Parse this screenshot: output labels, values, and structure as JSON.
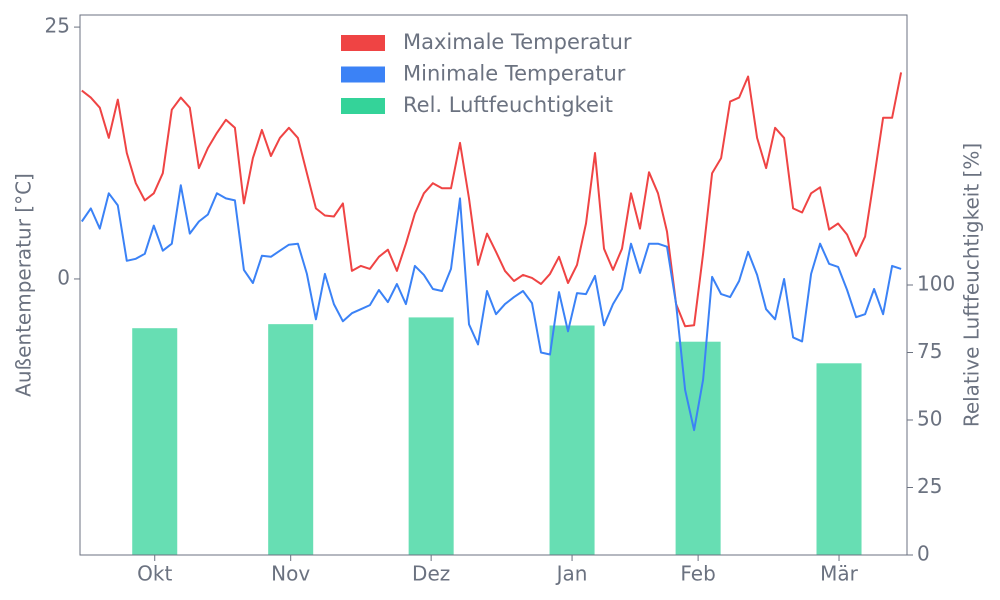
{
  "chart_data": {
    "type": "line",
    "xlim": [
      -0.4,
      183.3
    ],
    "xticks": [
      {
        "value": 16.2,
        "label": "Okt"
      },
      {
        "value": 46.4,
        "label": "Nov"
      },
      {
        "value": 77.6,
        "label": "Dez"
      },
      {
        "value": 108.9,
        "label": "Jan"
      },
      {
        "value": 136.9,
        "label": "Feb"
      },
      {
        "value": 168.2,
        "label": "Mär"
      }
    ],
    "ylabel": "Außentemperatur [°C]",
    "ylim": [
      -27.4,
      26.2
    ],
    "yticks": [
      0,
      25
    ],
    "y2label": "Relative Luftfeuchtigkeit [%]",
    "y2lim": [
      0,
      200
    ],
    "y2ticks": [
      0,
      25,
      50,
      75,
      100
    ],
    "legend": "top",
    "series": [
      {
        "name": "Maximale Temperatur",
        "color": "#ef4444",
        "type": "line",
        "x": [
          0,
          2,
          4,
          6,
          8,
          10,
          12,
          14,
          16,
          18,
          20,
          22,
          24,
          26,
          28,
          30,
          32,
          34,
          36,
          38,
          40,
          42,
          44,
          46,
          48,
          50,
          52,
          54,
          56,
          58,
          60,
          62,
          64,
          66,
          68,
          70,
          72,
          74,
          76,
          78,
          80,
          82,
          84,
          86,
          88,
          90,
          92,
          94,
          96,
          98,
          100,
          102,
          104,
          106,
          108,
          110,
          112,
          114,
          116,
          118,
          120,
          122,
          124,
          126,
          128,
          130,
          132,
          134,
          136,
          138,
          140,
          142,
          144,
          146,
          148,
          150,
          152,
          154,
          156,
          158,
          160,
          162,
          164,
          166,
          168,
          170,
          172,
          174,
          176,
          178,
          180,
          182
        ],
        "values": [
          18.7,
          18.0,
          17.0,
          14.0,
          17.8,
          12.5,
          9.5,
          7.8,
          8.5,
          10.5,
          16.8,
          18.0,
          17.0,
          11.0,
          13.0,
          14.5,
          15.8,
          15.0,
          7.5,
          12.0,
          14.8,
          12.2,
          14.0,
          15.0,
          14.0,
          10.5,
          7.0,
          6.3,
          6.2,
          7.5,
          0.8,
          1.3,
          1.0,
          2.2,
          2.9,
          0.8,
          3.5,
          6.5,
          8.5,
          9.5,
          9.0,
          9.0,
          13.5,
          8.0,
          1.4,
          4.5,
          2.7,
          0.8,
          -0.2,
          0.4,
          0.1,
          -0.5,
          0.5,
          2.2,
          -0.4,
          1.4,
          5.5,
          12.5,
          3.0,
          0.9,
          3.0,
          8.5,
          5.0,
          10.6,
          8.5,
          4.7,
          -2.5,
          -4.7,
          -4.6,
          2.5,
          10.5,
          12.0,
          17.6,
          18.0,
          20.1,
          14.0,
          11.0,
          15.0,
          14.0,
          7.0,
          6.6,
          8.5,
          9.1,
          4.9,
          5.5,
          4.4,
          2.3,
          4.2,
          10.0,
          16.0,
          16.0,
          20.5
        ]
      },
      {
        "name": "Minimale Temperatur",
        "color": "#3b82f6",
        "type": "line",
        "x": [
          0,
          2,
          4,
          6,
          8,
          10,
          12,
          14,
          16,
          18,
          20,
          22,
          24,
          26,
          28,
          30,
          32,
          34,
          36,
          38,
          40,
          42,
          44,
          46,
          48,
          50,
          52,
          54,
          56,
          58,
          60,
          62,
          64,
          66,
          68,
          70,
          72,
          74,
          76,
          78,
          80,
          82,
          84,
          86,
          88,
          90,
          92,
          94,
          96,
          98,
          100,
          102,
          104,
          106,
          108,
          110,
          112,
          114,
          116,
          118,
          120,
          122,
          124,
          126,
          128,
          130,
          132,
          134,
          136,
          138,
          140,
          142,
          144,
          146,
          148,
          150,
          152,
          154,
          156,
          158,
          160,
          162,
          164,
          166,
          168,
          170,
          172,
          174,
          176,
          178,
          180,
          182
        ],
        "values": [
          5.7,
          7.0,
          5.0,
          8.5,
          7.3,
          1.8,
          2.0,
          2.5,
          5.3,
          2.8,
          3.5,
          9.3,
          4.5,
          5.7,
          6.4,
          8.5,
          8.0,
          7.8,
          0.9,
          -0.4,
          2.3,
          2.2,
          2.8,
          3.4,
          3.5,
          0.5,
          -4.0,
          0.5,
          -2.5,
          -4.2,
          -3.4,
          -3.0,
          -2.6,
          -1.1,
          -2.3,
          -0.5,
          -2.5,
          1.3,
          0.4,
          -1.0,
          -1.2,
          1.0,
          8.0,
          -4.5,
          -6.5,
          -1.2,
          -3.5,
          -2.5,
          -1.8,
          -1.2,
          -2.4,
          -7.3,
          -7.5,
          -1.3,
          -5.2,
          -1.4,
          -1.5,
          0.3,
          -4.6,
          -2.5,
          -1.0,
          3.5,
          0.6,
          3.5,
          3.5,
          3.2,
          -2.5,
          -11.0,
          -15.0,
          -10.0,
          0.2,
          -1.5,
          -1.8,
          -0.2,
          2.7,
          0.4,
          -3.0,
          -4.0,
          0.0,
          -5.8,
          -6.2,
          0.5,
          3.5,
          1.5,
          1.2,
          -1.1,
          -3.8,
          -3.5,
          -1.0,
          -3.5,
          1.3,
          1.0
        ]
      },
      {
        "name": "Rel. Luftfeuchtigkeit",
        "color": "#34d399",
        "type": "bar",
        "axis": "y2",
        "x": [
          16.2,
          46.4,
          77.6,
          108.9,
          136.9,
          168.2
        ],
        "values": [
          84,
          85.5,
          88,
          85,
          79,
          71
        ]
      }
    ]
  }
}
